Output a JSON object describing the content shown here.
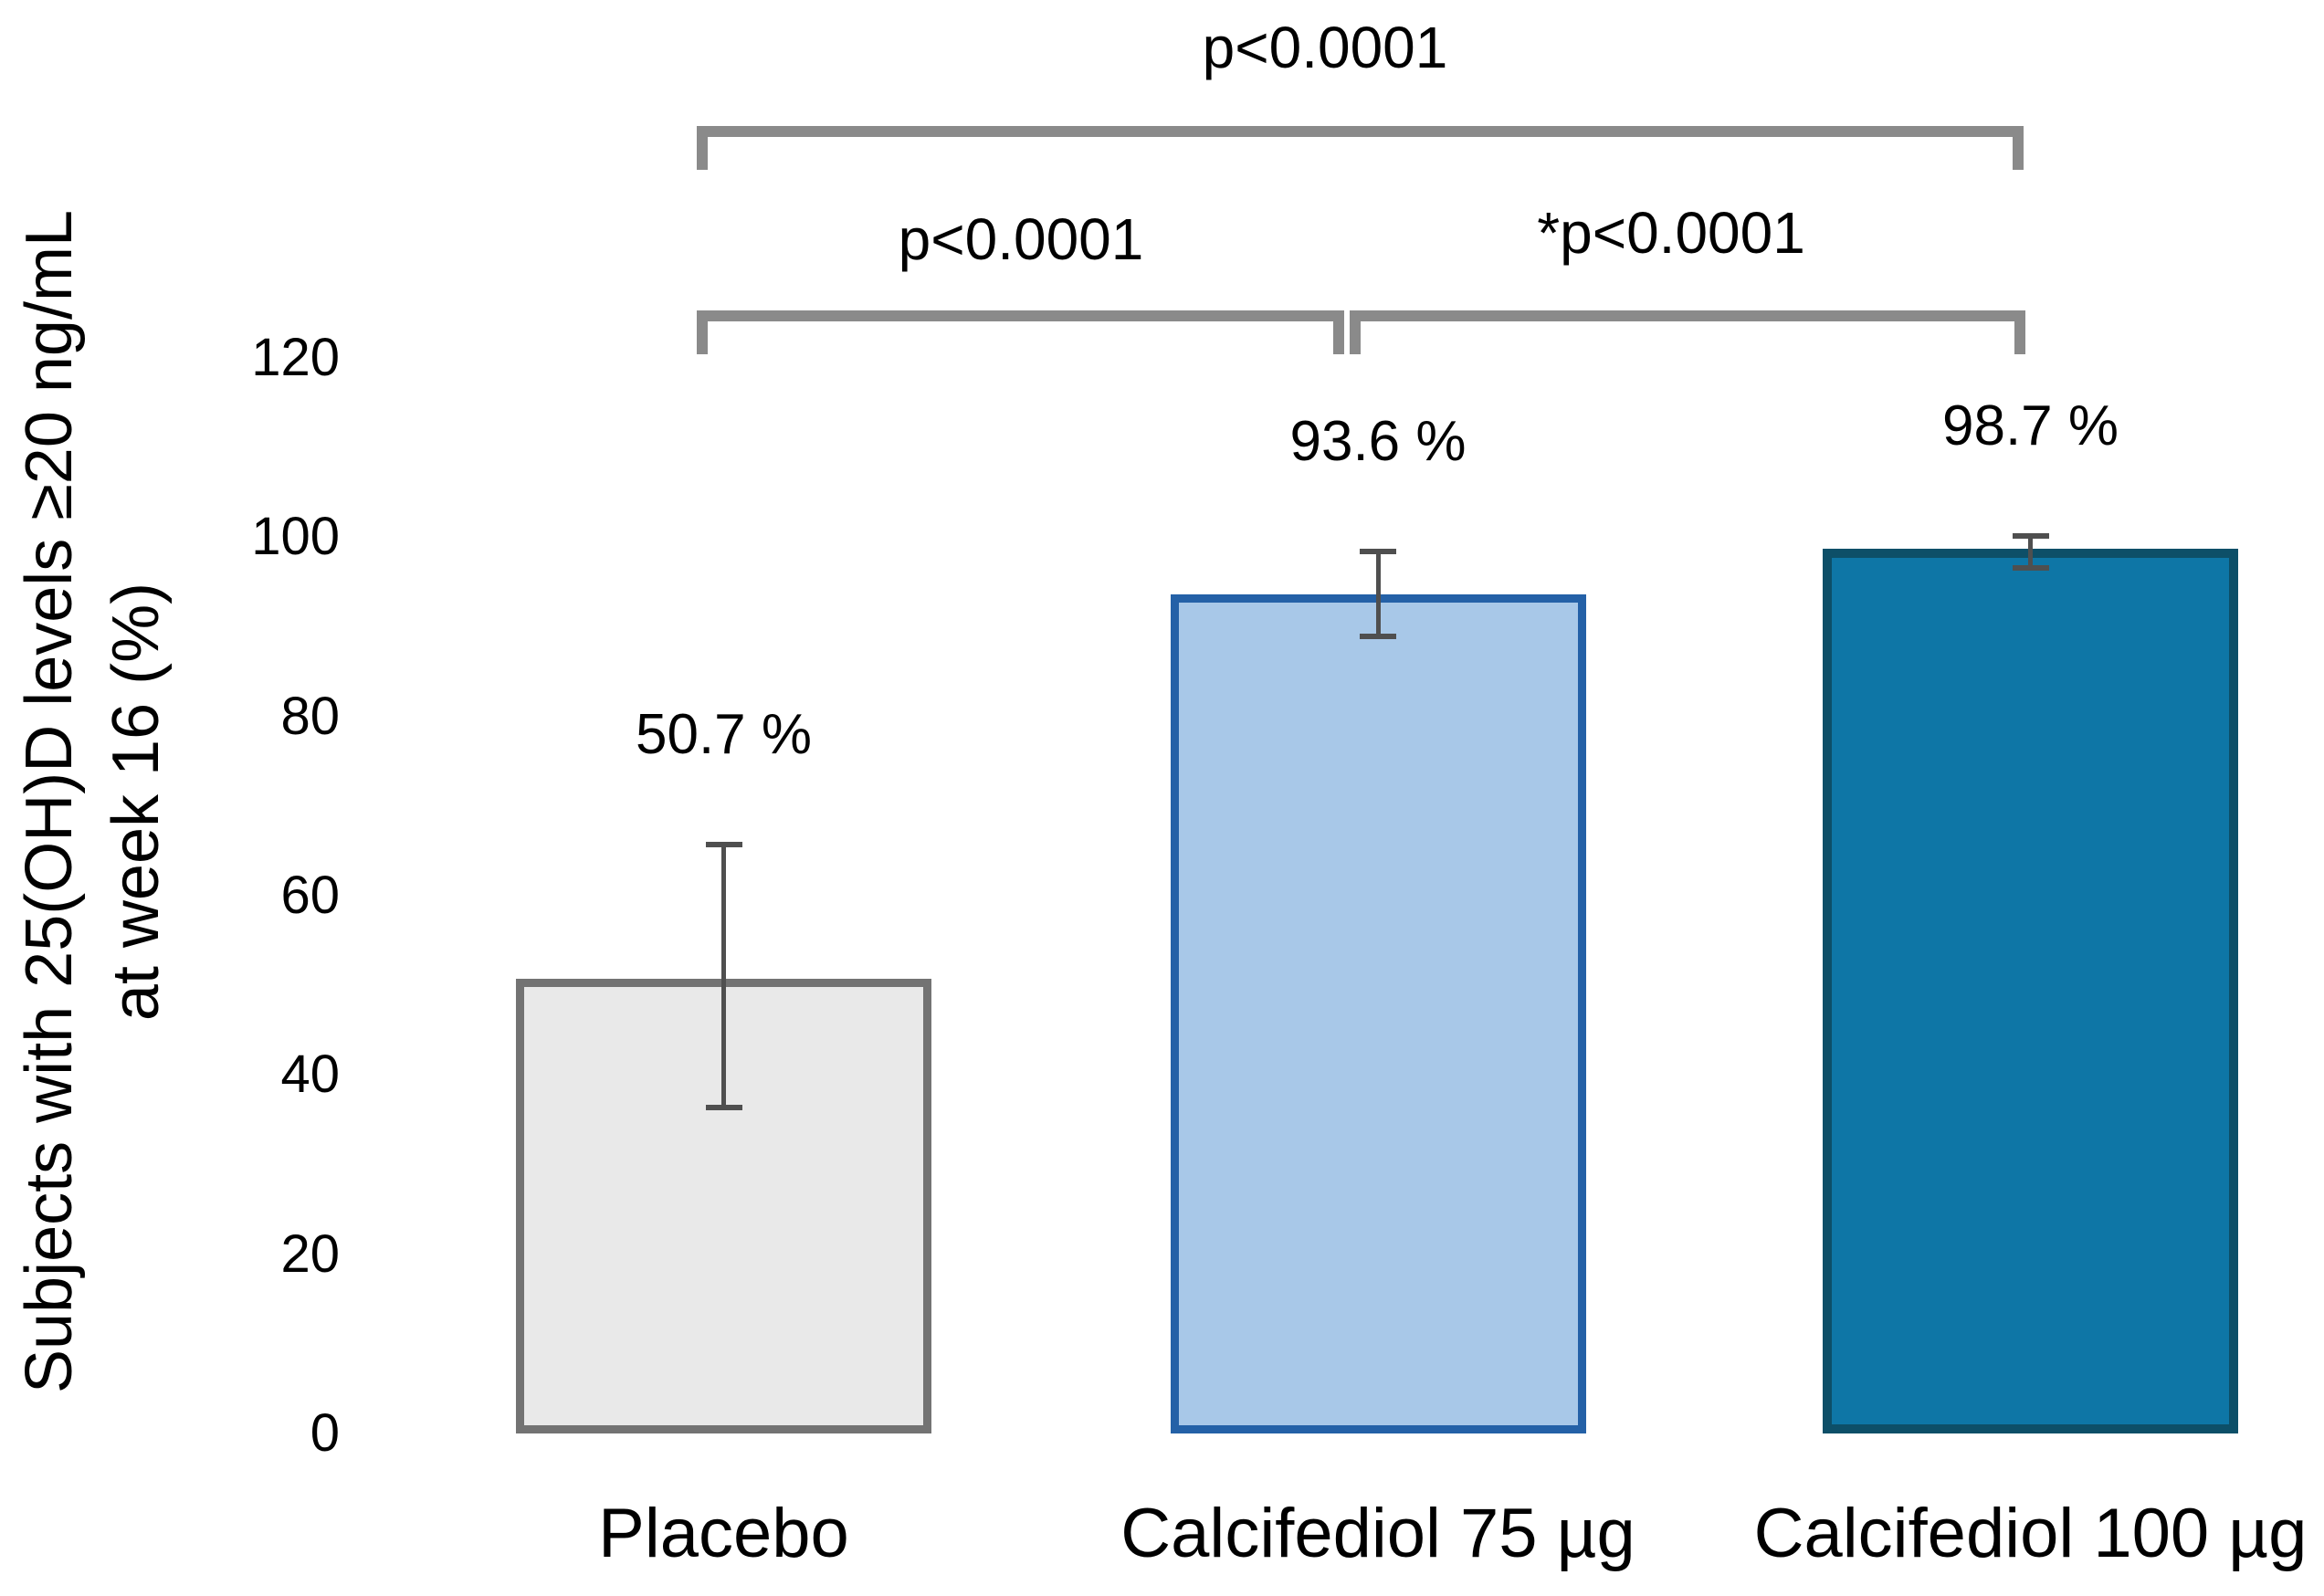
{
  "chart_data": {
    "type": "bar",
    "categories": [
      "Placebo",
      "Calcifediol 75 µg",
      "Calcifediol 100 µg"
    ],
    "values": [
      50.7,
      93.6,
      98.7
    ],
    "value_labels": [
      "50.7 %",
      "93.6 %",
      "98.7 %"
    ],
    "error_bars": [
      {
        "high": 65.7,
        "low": 36.4
      },
      {
        "high": 98.4,
        "low": 88.9
      },
      {
        "high": 100.1,
        "low": 96.6
      }
    ],
    "bar_styles": [
      {
        "fill": "#e9e9e9",
        "border": "#737373"
      },
      {
        "fill": "#a8c8e8",
        "border": "#2461a7"
      },
      {
        "fill": "#0e76a6",
        "border": "#0d4f68"
      }
    ],
    "ylabel": {
      "line1": "Subjects with 25(OH)D levels ≥20 ng/mL",
      "line2": "at week 16 (%)"
    },
    "yticks": [
      120,
      100,
      80,
      60,
      40,
      20,
      0
    ],
    "ylim": [
      0,
      120
    ],
    "grid": false,
    "legend": false,
    "significance_brackets": [
      {
        "label": "p<0.0001",
        "between": [
          "Placebo",
          "Calcifediol 100 µg"
        ],
        "level": "top"
      },
      {
        "label": "p<0.0001",
        "between": [
          "Placebo",
          "Calcifediol 75 µg"
        ],
        "level": "lower"
      },
      {
        "label": "*p<0.0001",
        "between": [
          "Calcifediol 75 µg",
          "Calcifediol 100 µg"
        ],
        "level": "lower"
      }
    ],
    "colors": {
      "background": "#ffffff",
      "text": "#000000",
      "bracket": "#8a8a8a",
      "error_bar": "#4f4f4f"
    }
  }
}
